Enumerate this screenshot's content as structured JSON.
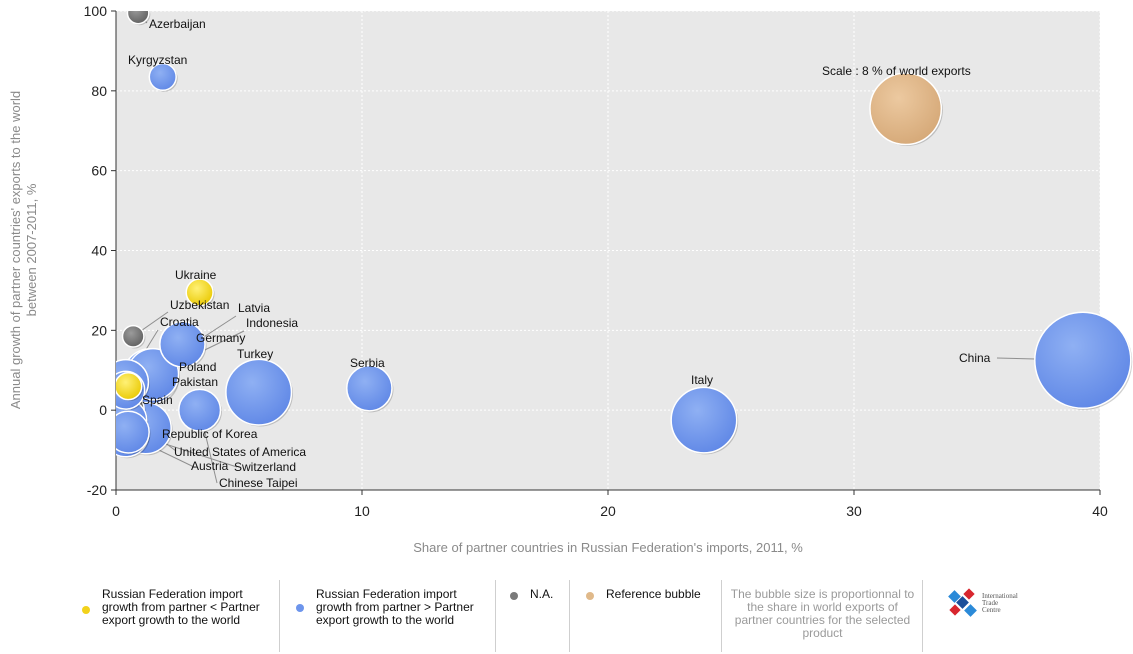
{
  "chart_data": {
    "type": "scatter",
    "subtype": "bubble",
    "xlabel": "Share of partner countries in Russian Federation's imports, 2011, %",
    "ylabel_lines": [
      "Annual growth of partner countries' exports to the world",
      "between 2007-2011, %"
    ],
    "xlim": [
      0,
      40
    ],
    "ylim": [
      -20,
      100
    ],
    "x_ticks": [
      0,
      10,
      20,
      30,
      40
    ],
    "y_ticks": [
      -20,
      0,
      20,
      40,
      60,
      80,
      100
    ],
    "grid": true,
    "points": [
      {
        "name": "Azerbaijan",
        "x": 0.9,
        "y": 99.5,
        "size": 0.2,
        "group": "na"
      },
      {
        "name": "Kyrgyzstan",
        "x": 1.9,
        "y": 83.5,
        "size": 0.5,
        "group": "greater"
      },
      {
        "name": "Ukraine",
        "x": 3.4,
        "y": 29.5,
        "size": 0.5,
        "group": "less"
      },
      {
        "name": "Uzbekistan",
        "x": 0.7,
        "y": 18.5,
        "size": 0.2,
        "group": "na"
      },
      {
        "name": "Latvia",
        "x": 0.5,
        "y": 6,
        "size": 0.5,
        "group": "less"
      },
      {
        "name": "Croatia",
        "x": 0.4,
        "y": 7,
        "size": 2.5,
        "group": "greater"
      },
      {
        "name": "Indonesia",
        "x": 1.4,
        "y": 8.5,
        "size": 4.2,
        "group": "greater"
      },
      {
        "name": "Germany",
        "x": 2.7,
        "y": 16.5,
        "size": 2.5,
        "group": "greater"
      },
      {
        "name": "Turkey",
        "x": 5.8,
        "y": 4.5,
        "size": 6.5,
        "group": "greater"
      },
      {
        "name": "Poland",
        "x": 1.5,
        "y": 9,
        "size": 3.5,
        "group": "greater"
      },
      {
        "name": "Pakistan",
        "x": 0.4,
        "y": 5,
        "size": 1.5,
        "group": "greater"
      },
      {
        "name": "Serbia",
        "x": 10.3,
        "y": 5.5,
        "size": 2.5,
        "group": "greater"
      },
      {
        "name": "Italy",
        "x": 23.9,
        "y": -2.5,
        "size": 6.5,
        "group": "greater"
      },
      {
        "name": "China",
        "x": 39.3,
        "y": 12.5,
        "size": 16,
        "group": "greater"
      },
      {
        "name": "Spain",
        "x": 0.3,
        "y": 0,
        "size": 2,
        "group": "na"
      },
      {
        "name": "Republic of Korea",
        "x": 0.4,
        "y": -2.5,
        "size": 2,
        "group": "greater"
      },
      {
        "name": "United States of America",
        "x": 1.2,
        "y": -4.5,
        "size": 3.5,
        "group": "greater"
      },
      {
        "name": "Austria",
        "x": 0.4,
        "y": -6,
        "size": 2.5,
        "group": "greater"
      },
      {
        "name": "Switzerland",
        "x": 0.5,
        "y": -5.5,
        "size": 2,
        "group": "greater"
      },
      {
        "name": "Chinese Taipei",
        "x": 3.4,
        "y": 0,
        "size": 2,
        "group": "greater"
      }
    ],
    "reference_bubble": {
      "label": "Scale : 8 % of world exports",
      "x": 32.1,
      "y": 75.5,
      "size": 8
    }
  },
  "colors": {
    "plot_bg": "#e8e8e8",
    "greater": "#6d95ec",
    "less": "#f2d21b",
    "na": "#7a7a7a",
    "reference": "#e0b98a",
    "leader": "#8f8f8f"
  },
  "legend": {
    "item_less": "Russian Federation import growth from partner < Partner export growth to the world",
    "item_greater": "Russian Federation import growth from partner > Partner export growth to the world",
    "item_na": "N.A.",
    "item_reference": "Reference bubble",
    "note": "The bubble size is proportionnal to the share in world exports of partner countries for the selected product"
  },
  "logo": {
    "line1": "International",
    "line2": "Trade",
    "line3": "Centre"
  }
}
